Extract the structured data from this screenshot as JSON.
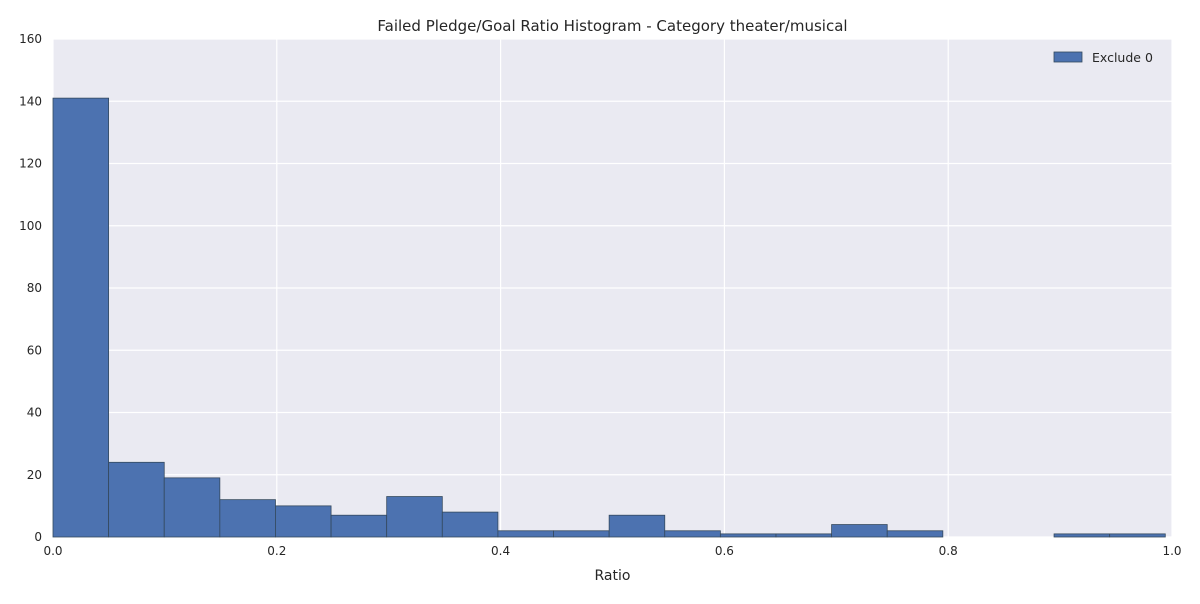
{
  "chart_data": {
    "type": "bar",
    "title": "Failed Pledge/Goal Ratio Histogram - Category theater/musical",
    "xlabel": "Ratio",
    "ylabel": "",
    "xlim": [
      0.0,
      1.0
    ],
    "ylim": [
      0,
      160
    ],
    "xticks": [
      "0.0",
      "0.2",
      "0.4",
      "0.6",
      "0.8",
      "1.0"
    ],
    "yticks": [
      "0",
      "20",
      "40",
      "60",
      "80",
      "100",
      "120",
      "140",
      "160"
    ],
    "grid": true,
    "legend_position": "top-right",
    "bin_edges": [
      0.0,
      0.0497,
      0.0994,
      0.1491,
      0.1988,
      0.2485,
      0.2982,
      0.3479,
      0.3976,
      0.4473,
      0.497,
      0.5467,
      0.5964,
      0.6461,
      0.6958,
      0.7455,
      0.7952,
      0.8449,
      0.8946,
      0.9443,
      0.994
    ],
    "series": [
      {
        "name": "Exclude 0",
        "color": "#4c72b0",
        "values": [
          141,
          24,
          19,
          12,
          10,
          7,
          13,
          8,
          2,
          2,
          7,
          2,
          1,
          1,
          4,
          2,
          0,
          0,
          1,
          1
        ]
      }
    ],
    "background_color": "#eaeaf2",
    "grid_color": "#ffffff"
  }
}
